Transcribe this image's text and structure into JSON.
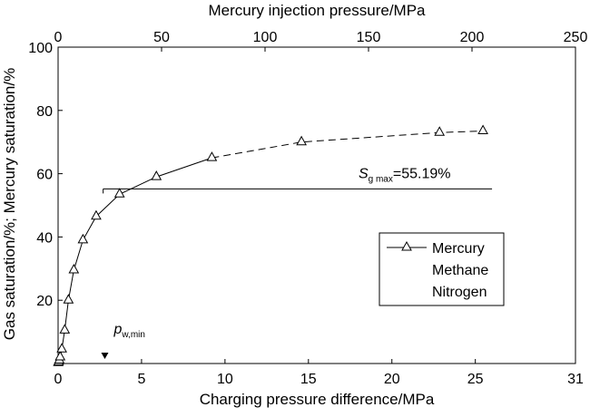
{
  "chart_data": {
    "type": "line",
    "x_bottom": {
      "label": "Charging pressure difference/MPa",
      "range": [
        0,
        31
      ],
      "ticks": [
        "0",
        "5",
        "10",
        "15",
        "20",
        "25",
        "31"
      ],
      "tick_values": [
        0,
        5,
        10,
        15,
        20,
        25,
        31
      ]
    },
    "x_top": {
      "label": "Mercury injection pressure/MPa",
      "range": [
        0,
        250
      ],
      "ticks": [
        "0",
        "50",
        "100",
        "150",
        "200",
        "250"
      ],
      "tick_values": [
        0,
        50,
        100,
        150,
        200,
        250
      ]
    },
    "y": {
      "label": "Gas saturation/%; Mercury saturation/%",
      "range": [
        0,
        100
      ],
      "ticks": [
        "20",
        "40",
        "60",
        "80",
        "100"
      ],
      "tick_values": [
        20,
        40,
        60,
        80,
        100
      ]
    },
    "series": [
      {
        "name": "Mercury",
        "axis": "top",
        "marker": "triangle-open",
        "x": [
          0.1,
          0.3,
          0.6,
          1.0,
          1.8,
          3.2,
          5.0,
          7.6,
          12.0,
          18.4,
          29.7,
          47.5,
          74.3,
          117.6,
          184.3,
          205.3
        ],
        "y": [
          0.2,
          0.5,
          1.0,
          2.0,
          4.5,
          10.5,
          20.0,
          29.5,
          39.0,
          46.5,
          53.5,
          59.0,
          65.0,
          70.0,
          73.0,
          73.5
        ],
        "dashed_from_index": 13
      }
    ],
    "legend": {
      "entries": [
        "Mercury",
        "Methane",
        "Nitrogen"
      ],
      "placement": "right"
    },
    "reference_line": {
      "label_symbol": "S",
      "label_sub": "g max",
      "label_value": "=55.19%",
      "y": 55.19,
      "x_start": 2.7,
      "x_end": 26.0
    },
    "annotation": {
      "symbol": "p",
      "sub": "w,min",
      "x": 2.8
    }
  }
}
